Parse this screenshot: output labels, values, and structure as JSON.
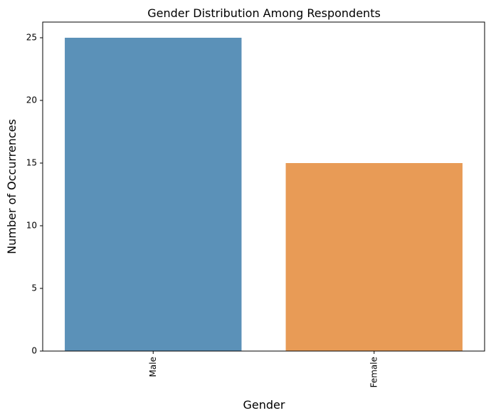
{
  "chart_data": {
    "type": "bar",
    "title": "Gender Distribution Among Respondents",
    "xlabel": "Gender",
    "ylabel": "Number of Occurrences",
    "categories": [
      "Male",
      "Female"
    ],
    "values": [
      25,
      15
    ],
    "colors": [
      "#5b91b8",
      "#e89b56"
    ],
    "ylim": [
      0,
      26.25
    ],
    "yticks": [
      0,
      5,
      10,
      15,
      20,
      25
    ],
    "ytick_labels": [
      "0",
      "5",
      "10",
      "15",
      "20",
      "25"
    ],
    "xtick_rotation": "vertical",
    "grid": false,
    "legend": "none"
  }
}
